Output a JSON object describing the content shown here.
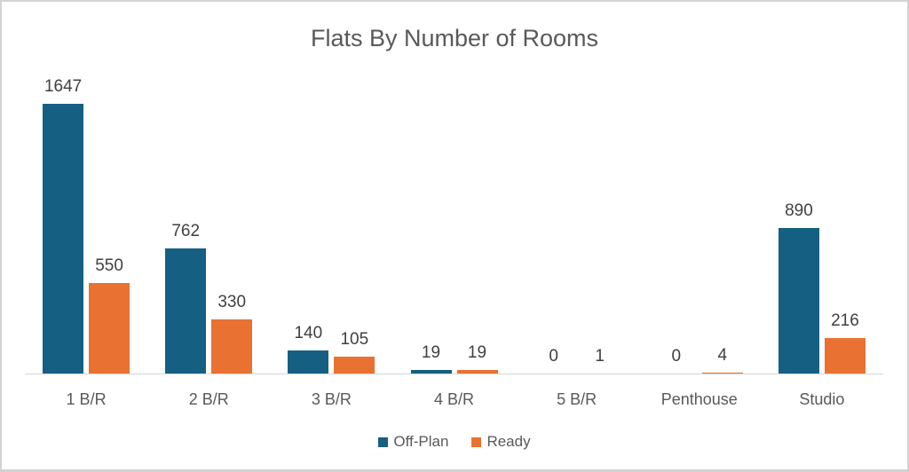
{
  "title": "Flats By Number of Rooms",
  "colors": {
    "off_plan": "#156082",
    "ready": "#E97132",
    "axis_line": "#D6D6D6",
    "title_text": "#595959",
    "data_label_text": "#404040",
    "category_text": "#595959",
    "frame_border": "#D3D3D3",
    "background": "#FFFFFF"
  },
  "chart_data": {
    "type": "bar",
    "title": "Flats By Number of Rooms",
    "categories": [
      "1 B/R",
      "2 B/R",
      "3 B/R",
      "4 B/R",
      "5 B/R",
      "Penthouse",
      "Studio"
    ],
    "series": [
      {
        "name": "Off-Plan",
        "color": "#156082",
        "values": [
          1647,
          762,
          140,
          19,
          0,
          0,
          890
        ]
      },
      {
        "name": "Ready",
        "color": "#E97132",
        "values": [
          550,
          330,
          105,
          19,
          1,
          4,
          216
        ]
      }
    ],
    "xlabel": "",
    "ylabel": "",
    "ylim": [
      0,
      1900
    ],
    "grid": false,
    "y_axis_visible": false,
    "data_labels": true,
    "legend_position": "bottom"
  }
}
